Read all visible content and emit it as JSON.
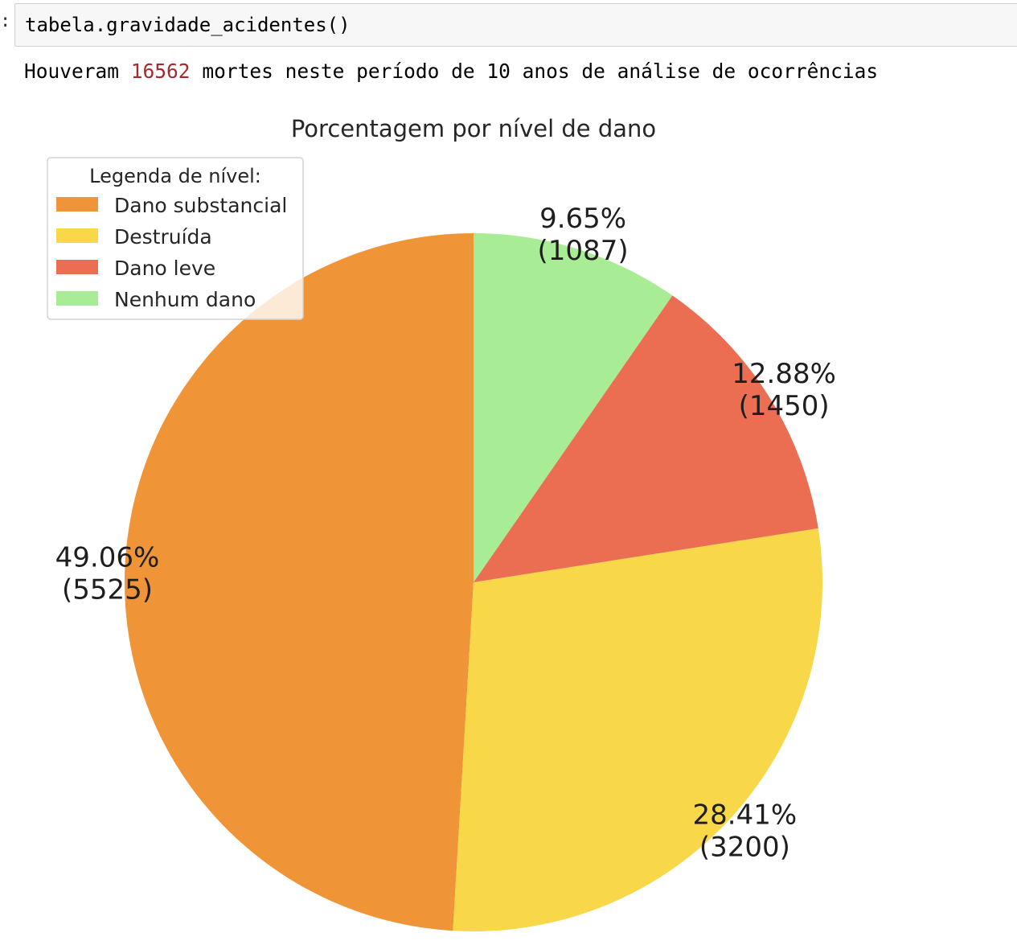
{
  "notebook": {
    "prompt_mark": ":",
    "code": "tabela.gravidade_acidentes()",
    "output": {
      "prefix": "Houveram",
      "deaths": "16562",
      "suffix": "mortes neste período de 10 anos de análise de ocorrências"
    }
  },
  "chart_data": {
    "type": "pie",
    "title": "Porcentagem por nível de dano",
    "legend": {
      "title": "Legenda de nível:",
      "placement": "top-left",
      "entries": [
        "Dano substancial",
        "Destruída",
        "Dano leve",
        "Nenhum dano"
      ]
    },
    "slices": [
      {
        "label": "Dano substancial",
        "value": 5525,
        "percent": "49.06%",
        "count_label": "(5525)",
        "color": "#f09438"
      },
      {
        "label": "Destruída",
        "value": 3200,
        "percent": "28.41%",
        "count_label": "(3200)",
        "color": "#f8d748"
      },
      {
        "label": "Dano leve",
        "value": 1450,
        "percent": "12.88%",
        "count_label": "(1450)",
        "color": "#ec6e52"
      },
      {
        "label": "Nenhum dano",
        "value": 1087,
        "percent": "9.65%",
        "count_label": "(1087)",
        "color": "#a8ec96"
      }
    ],
    "start_angle_deg": 90,
    "direction": "counterclockwise"
  }
}
